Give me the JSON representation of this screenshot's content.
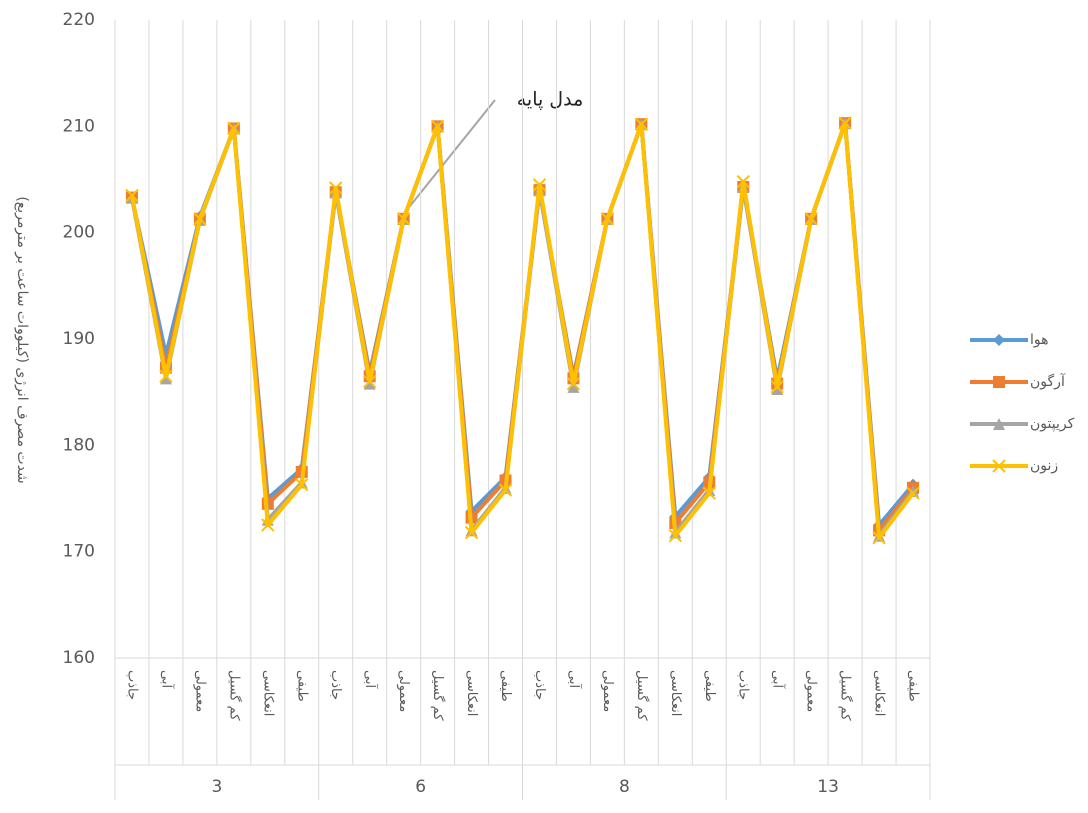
{
  "chart_data": {
    "type": "line",
    "y_label": "شدت مصرف انرژی (کیلووات ساعت بر مترمربع)",
    "annotation": "مدل پایه",
    "groups": [
      "3",
      "6",
      "8",
      "13"
    ],
    "categories": [
      "جاذب",
      "آبی",
      "معمولی",
      "کم گسیل",
      "انعکاسی",
      "طیفی",
      "جاذب",
      "آبی",
      "معمولی",
      "کم گسیل",
      "انعکاسی",
      "طیفی",
      "جاذب",
      "آبی",
      "معمولی",
      "کم گسیل",
      "انعکاسی",
      "طیفی",
      "جاذب",
      "آبی",
      "معمولی",
      "کم گسیل",
      "انعکاسی",
      "طیفی"
    ],
    "series": [
      {
        "name": "هوا",
        "color": "#5b9bd5",
        "marker": "diamond",
        "values": [
          203.3,
          188.5,
          201.5,
          209.8,
          175,
          177.8,
          203.8,
          186.8,
          201.3,
          210,
          173.8,
          177,
          204,
          186.5,
          201.3,
          210.2,
          173.3,
          177,
          204.3,
          186.2,
          201.3,
          210.3,
          172.5,
          176.3
        ]
      },
      {
        "name": "آرگون",
        "color": "#ed7d31",
        "marker": "square",
        "values": [
          203.3,
          187.3,
          201.3,
          209.8,
          174.5,
          177.5,
          203.8,
          186.5,
          201.3,
          210,
          173.2,
          176.7,
          204,
          186.3,
          201.3,
          210.2,
          172.7,
          176.5,
          204.3,
          185.8,
          201.3,
          210.3,
          172,
          176
        ]
      },
      {
        "name": "کریپتون",
        "color": "#a5a5a5",
        "marker": "triangle",
        "values": [
          203.3,
          186.3,
          201.2,
          209.8,
          173,
          176.5,
          203.8,
          185.8,
          201.3,
          210,
          172,
          176,
          204,
          185.5,
          201.3,
          210.2,
          171.8,
          175.8,
          204.3,
          185.3,
          201.3,
          210.3,
          171.5,
          175.7
        ]
      },
      {
        "name": "زنون",
        "color": "#ffc000",
        "marker": "x",
        "values": [
          203.5,
          186.5,
          201.3,
          209.8,
          172.5,
          176.3,
          204.2,
          186,
          201.3,
          210,
          171.8,
          175.8,
          204.5,
          185.8,
          201.3,
          210.2,
          171.5,
          175.5,
          204.8,
          185.5,
          201.3,
          210.3,
          171.3,
          175.5
        ]
      }
    ],
    "ylim": [
      160,
      220
    ],
    "yticks": [
      160,
      170,
      180,
      190,
      200,
      210,
      220
    ],
    "grid": "vertical",
    "legend": "right"
  }
}
